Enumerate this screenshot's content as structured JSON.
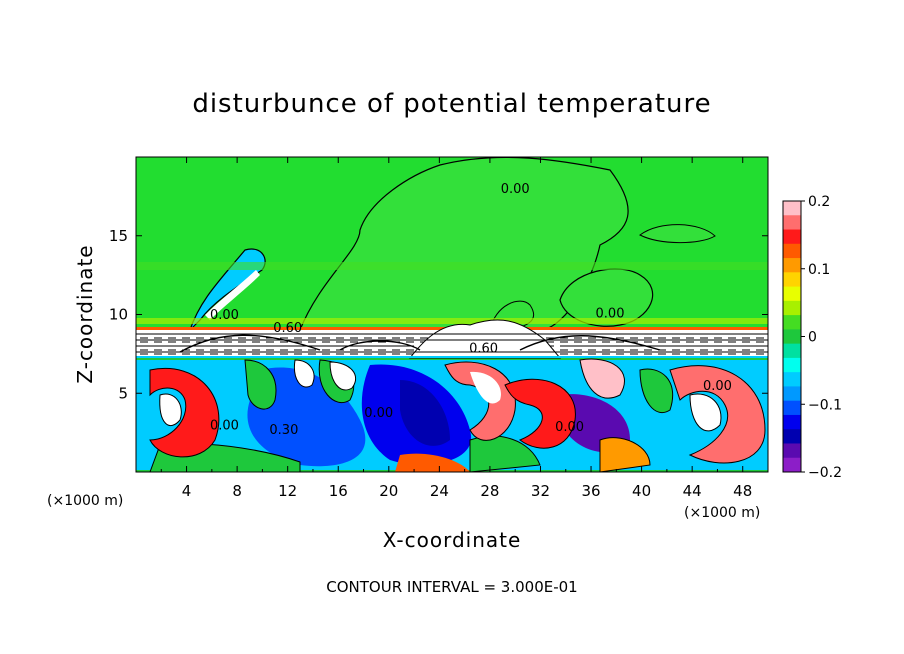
{
  "chart_data": {
    "type": "heatmap",
    "title": "disturbunce of potential temperature",
    "xlabel": "X-coordinate",
    "ylabel": "Z-coordinate",
    "x_unit_left": "(×1000 m)",
    "x_unit_right": "(×1000 m)",
    "footer": "CONTOUR INTERVAL = 3.000E-01",
    "xlim": [
      0,
      50
    ],
    "ylim": [
      0,
      20
    ],
    "x_ticks": [
      4,
      8,
      12,
      16,
      20,
      24,
      28,
      32,
      36,
      40,
      44,
      48
    ],
    "y_ticks": [
      5,
      10,
      15
    ],
    "colorbar": {
      "range": [
        -0.2,
        0.2
      ],
      "tick_values": [
        0.2,
        0.1,
        0,
        -0.1,
        -0.2
      ],
      "tick_labels": [
        "0.2",
        "0.1",
        "0",
        "−0.1",
        "−0.2"
      ],
      "colors": [
        "#ffc0c8",
        "#ff6e6e",
        "#ff1a1a",
        "#ff5a00",
        "#ff9a00",
        "#ffd400",
        "#e8ff00",
        "#a8f000",
        "#44dd22",
        "#1ec83c",
        "#00e0a0",
        "#00ffee",
        "#00ccff",
        "#0099ff",
        "#0050ff",
        "#0000ee",
        "#0000b0",
        "#5a0ab0",
        "#8c1ec8"
      ]
    },
    "contour_labels": [
      {
        "text": "0.00",
        "x": 30,
        "y": 17.7
      },
      {
        "text": "0.00",
        "x": 7,
        "y": 9.7
      },
      {
        "text": "0.00",
        "x": 37.5,
        "y": 9.8
      },
      {
        "text": "0.60",
        "x": 12,
        "y": 8.9
      },
      {
        "text": "0.60",
        "x": 27.5,
        "y": 7.6
      },
      {
        "text": "0.00",
        "x": 7,
        "y": 2.7
      },
      {
        "text": "0.30",
        "x": 11.7,
        "y": 2.4
      },
      {
        "text": "0.00",
        "x": 19.2,
        "y": 3.5
      },
      {
        "text": "0.00",
        "x": 34.3,
        "y": 2.6
      },
      {
        "text": "0.00",
        "x": 46,
        "y": 5.2
      }
    ]
  }
}
